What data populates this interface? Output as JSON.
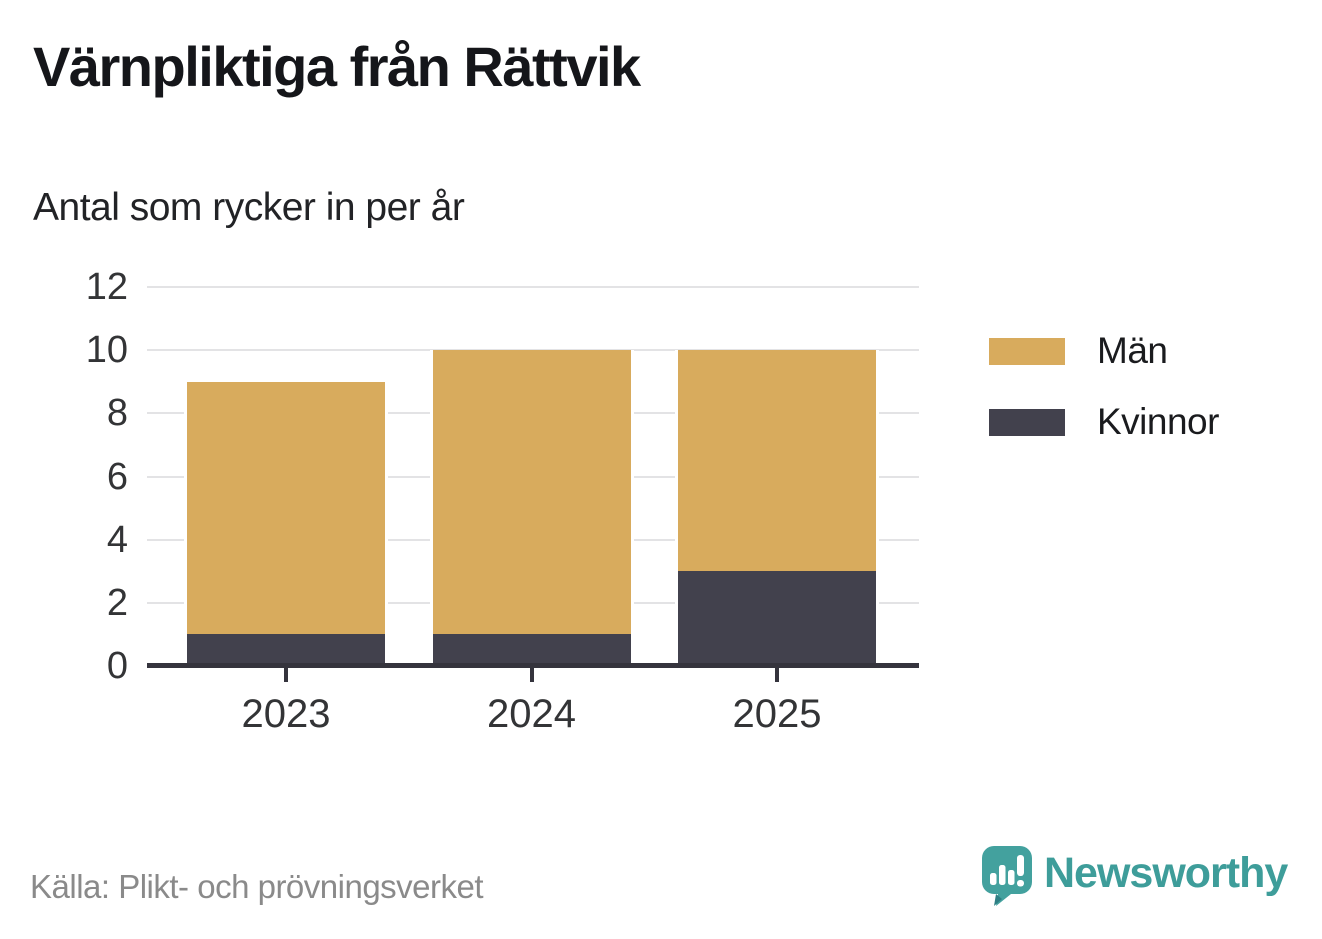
{
  "header": {
    "title": "Värnpliktiga från Rättvik",
    "subtitle": "Antal som rycker in per år"
  },
  "chart_data": {
    "type": "bar",
    "stacked": true,
    "title": "Värnpliktiga från Rättvik",
    "subtitle": "Antal som rycker in per år",
    "categories": [
      "2023",
      "2024",
      "2025"
    ],
    "series": [
      {
        "name": "Män",
        "color": "#D8AB5D",
        "values": [
          8,
          9,
          7
        ]
      },
      {
        "name": "Kvinnor",
        "color": "#42414D",
        "values": [
          1,
          1,
          3
        ]
      }
    ],
    "totals": [
      9,
      10,
      10
    ],
    "xlabel": "",
    "ylabel": "",
    "ylim": [
      0,
      12
    ],
    "yticks": [
      0,
      2,
      4,
      6,
      8,
      10,
      12
    ],
    "grid": "horizontal",
    "legend_position": "right",
    "gridline_color": "#e3e3e5",
    "axis_color": "#35343d"
  },
  "footer": {
    "source": "Källa: Plikt- och prövningsverket",
    "brand": "Newsworthy",
    "brand_color": "#3E9D9A"
  }
}
